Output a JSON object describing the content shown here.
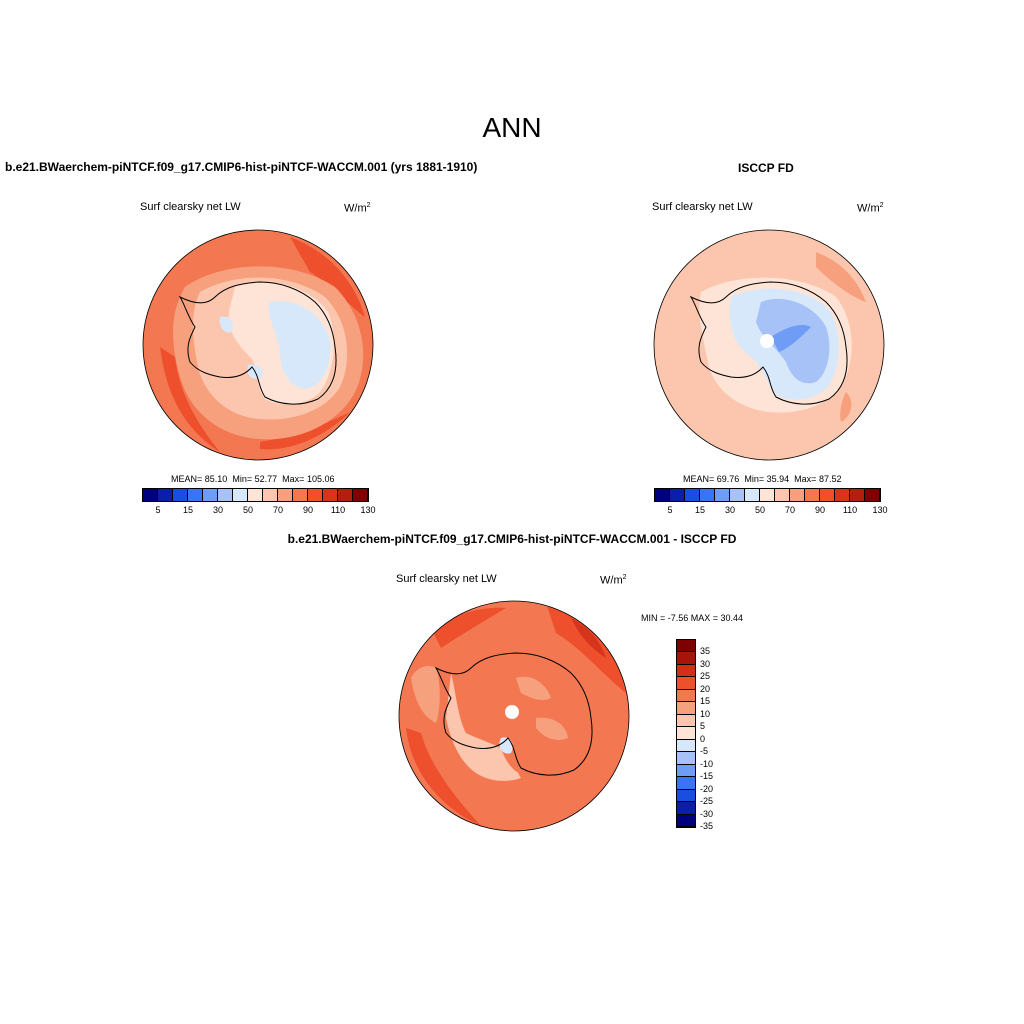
{
  "page": {
    "title": "ANN"
  },
  "panels": [
    {
      "title": "b.e21.BWaerchem-piNTCF.f09_g17.CMIP6-hist-piNTCF-WACCM.001 (yrs 1881-1910)",
      "variable": "Surf clearsky net LW",
      "units_base": "W/m",
      "units_sup": "2",
      "stats": {
        "mean_label": "MEAN=",
        "mean": "85.10",
        "min_label": "Min=",
        "min": "52.77",
        "max_label": "Max=",
        "max": "105.06"
      },
      "colorbar_ticks": [
        "5",
        "15",
        "30",
        "50",
        "70",
        "90",
        "110",
        "130"
      ]
    },
    {
      "title": "ISCCP FD",
      "variable": "Surf clearsky net LW",
      "units_base": "W/m",
      "units_sup": "2",
      "stats": {
        "mean_label": "MEAN=",
        "mean": "69.76",
        "min_label": "Min=",
        "min": "35.94",
        "max_label": "Max=",
        "max": "87.52"
      },
      "colorbar_ticks": [
        "5",
        "15",
        "30",
        "50",
        "70",
        "90",
        "110",
        "130"
      ]
    },
    {
      "title": "b.e21.BWaerchem-piNTCF.f09_g17.CMIP6-hist-piNTCF-WACCM.001 - ISCCP FD",
      "variable": "Surf clearsky net LW",
      "units_base": "W/m",
      "units_sup": "2",
      "minmax": "MIN =  -7.56 MAX =  30.44",
      "colorbar_ticks": [
        "35",
        "30",
        "25",
        "20",
        "15",
        "10",
        "5",
        "0",
        "-5",
        "-10",
        "-15",
        "-20",
        "-25",
        "-30",
        "-35"
      ]
    }
  ],
  "colors": {
    "abs_scale": [
      "#00007f",
      "#0a1fa8",
      "#1a4ee0",
      "#3b74f2",
      "#6f9cf5",
      "#a6c2f6",
      "#d8e8fb",
      "#fde4d6",
      "#fbc6ad",
      "#f7a07d",
      "#f37852",
      "#ee4f2c",
      "#d7351b",
      "#b0200f",
      "#7f0000"
    ],
    "diff_scale": [
      "#7f0000",
      "#a8140a",
      "#d03015",
      "#ee4f2c",
      "#f37852",
      "#f7a07d",
      "#fbc6ad",
      "#fde4d6",
      "#d8e8fb",
      "#a6c2f6",
      "#6f9cf5",
      "#3b74f2",
      "#1a4ee0",
      "#0a1fa8",
      "#00007f"
    ]
  }
}
